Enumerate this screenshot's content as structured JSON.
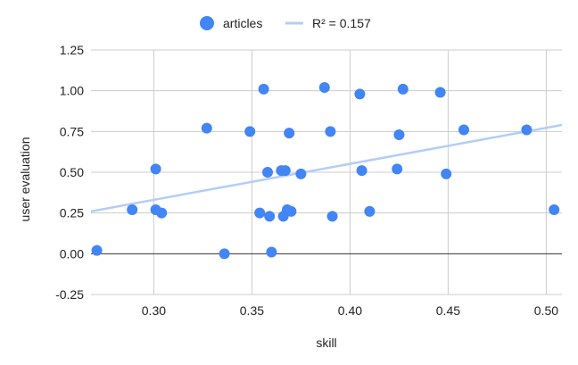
{
  "chart_data": {
    "type": "scatter",
    "title": "",
    "xlabel": "skill",
    "ylabel": "user evaluation",
    "xlim": [
      0.268,
      0.508
    ],
    "ylim": [
      -0.25,
      1.25
    ],
    "x_ticks": [
      0.3,
      0.35,
      0.4,
      0.45,
      0.5
    ],
    "x_tick_labels": [
      "0.30",
      "0.35",
      "0.40",
      "0.45",
      "0.50"
    ],
    "y_ticks": [
      -0.25,
      0,
      0.25,
      0.5,
      0.75,
      1.0,
      1.25
    ],
    "y_tick_labels": [
      "-0.25",
      "0.00",
      "0.25",
      "0.50",
      "0.75",
      "1.00",
      "1.25"
    ],
    "grid": true,
    "legend_position": "top-center",
    "series": [
      {
        "name": "articles",
        "color": "#4285f4",
        "points": [
          {
            "x": 0.271,
            "y": 0.02
          },
          {
            "x": 0.289,
            "y": 0.27
          },
          {
            "x": 0.301,
            "y": 0.27
          },
          {
            "x": 0.301,
            "y": 0.52
          },
          {
            "x": 0.304,
            "y": 0.25
          },
          {
            "x": 0.327,
            "y": 0.77
          },
          {
            "x": 0.336,
            "y": 0.0
          },
          {
            "x": 0.349,
            "y": 0.75
          },
          {
            "x": 0.354,
            "y": 0.25
          },
          {
            "x": 0.356,
            "y": 1.01
          },
          {
            "x": 0.358,
            "y": 0.5
          },
          {
            "x": 0.359,
            "y": 0.23
          },
          {
            "x": 0.36,
            "y": 0.01
          },
          {
            "x": 0.365,
            "y": 0.51
          },
          {
            "x": 0.366,
            "y": 0.23
          },
          {
            "x": 0.367,
            "y": 0.51
          },
          {
            "x": 0.368,
            "y": 0.27
          },
          {
            "x": 0.369,
            "y": 0.74
          },
          {
            "x": 0.37,
            "y": 0.26
          },
          {
            "x": 0.375,
            "y": 0.49
          },
          {
            "x": 0.387,
            "y": 1.02
          },
          {
            "x": 0.39,
            "y": 0.75
          },
          {
            "x": 0.391,
            "y": 0.23
          },
          {
            "x": 0.405,
            "y": 0.98
          },
          {
            "x": 0.406,
            "y": 0.51
          },
          {
            "x": 0.41,
            "y": 0.26
          },
          {
            "x": 0.424,
            "y": 0.52
          },
          {
            "x": 0.425,
            "y": 0.73
          },
          {
            "x": 0.427,
            "y": 1.01
          },
          {
            "x": 0.446,
            "y": 0.99
          },
          {
            "x": 0.449,
            "y": 0.49
          },
          {
            "x": 0.458,
            "y": 0.76
          },
          {
            "x": 0.49,
            "y": 0.76
          },
          {
            "x": 0.504,
            "y": 0.27
          }
        ]
      }
    ],
    "trendline": {
      "name": "R² = 0.157",
      "color": "#b3cdf6",
      "type": "linear",
      "x": [
        0.268,
        0.508
      ],
      "y": [
        0.26,
        0.79
      ]
    }
  }
}
